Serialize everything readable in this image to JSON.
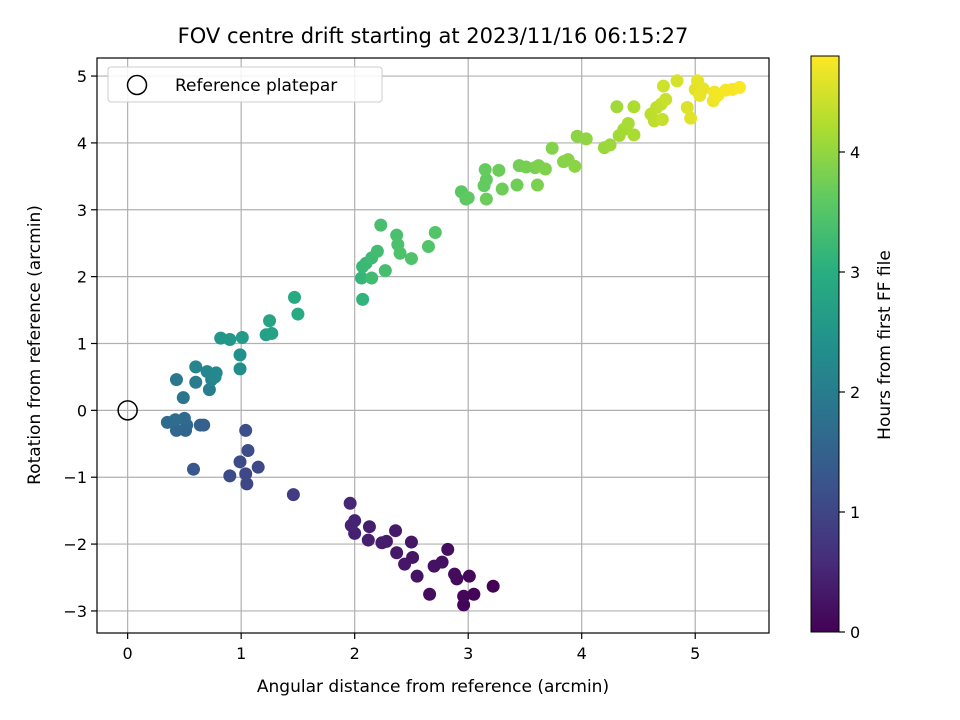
{
  "chart_data": {
    "type": "scatter",
    "title": "FOV centre drift starting at 2023/11/16 06:15:27",
    "xlabel": "Angular distance from reference (arcmin)",
    "ylabel": "Rotation from reference (arcmin)",
    "xlim": [
      -0.27,
      5.65
    ],
    "ylim": [
      -3.33,
      5.27
    ],
    "xticks": [
      0,
      1,
      2,
      3,
      4,
      5
    ],
    "yticks": [
      -3,
      -2,
      -1,
      0,
      1,
      2,
      3,
      4,
      5
    ],
    "xtick_labels": [
      "0",
      "1",
      "2",
      "3",
      "4",
      "5"
    ],
    "ytick_labels": [
      "−3",
      "−2",
      "−1",
      "0",
      "1",
      "2",
      "3",
      "4",
      "5"
    ],
    "grid": true,
    "legend": {
      "placement": "top-left",
      "entries": [
        "Reference platepar"
      ]
    },
    "reference_point": {
      "name": "Reference platepar",
      "x": 0,
      "y": 0,
      "marker": "open-circle"
    },
    "colorbar": {
      "label": "Hours from first FF file",
      "colormap": "viridis",
      "min": 0,
      "max": 4.8,
      "ticks": [
        0,
        1,
        2,
        3,
        4
      ],
      "tick_labels": [
        "0",
        "1",
        "2",
        "3",
        "4"
      ]
    },
    "color_value_label": "Hours from first FF file",
    "points": [
      {
        "x": 3.22,
        "y": -2.63,
        "h": 0.02
      },
      {
        "x": 3.05,
        "y": -2.75,
        "h": 0.04
      },
      {
        "x": 2.96,
        "y": -2.91,
        "h": 0.06
      },
      {
        "x": 2.96,
        "y": -2.78,
        "h": 0.08
      },
      {
        "x": 3.01,
        "y": -2.48,
        "h": 0.1
      },
      {
        "x": 2.9,
        "y": -2.52,
        "h": 0.12
      },
      {
        "x": 2.88,
        "y": -2.45,
        "h": 0.14
      },
      {
        "x": 2.66,
        "y": -2.75,
        "h": 0.16
      },
      {
        "x": 2.82,
        "y": -2.08,
        "h": 0.18
      },
      {
        "x": 2.77,
        "y": -2.27,
        "h": 0.2
      },
      {
        "x": 2.7,
        "y": -2.33,
        "h": 0.22
      },
      {
        "x": 2.55,
        "y": -2.48,
        "h": 0.24
      },
      {
        "x": 2.51,
        "y": -2.2,
        "h": 0.26
      },
      {
        "x": 2.5,
        "y": -1.97,
        "h": 0.28
      },
      {
        "x": 2.44,
        "y": -2.3,
        "h": 0.3
      },
      {
        "x": 2.37,
        "y": -2.13,
        "h": 0.32
      },
      {
        "x": 2.36,
        "y": -1.8,
        "h": 0.34
      },
      {
        "x": 2.28,
        "y": -1.96,
        "h": 0.36
      },
      {
        "x": 2.24,
        "y": -1.98,
        "h": 0.38
      },
      {
        "x": 2.13,
        "y": -1.74,
        "h": 0.4
      },
      {
        "x": 2.12,
        "y": -1.94,
        "h": 0.42
      },
      {
        "x": 2.0,
        "y": -1.84,
        "h": 0.44
      },
      {
        "x": 2.0,
        "y": -1.65,
        "h": 0.46
      },
      {
        "x": 1.97,
        "y": -1.72,
        "h": 0.48
      },
      {
        "x": 1.96,
        "y": -1.39,
        "h": 0.5
      },
      {
        "x": 1.46,
        "y": -1.26,
        "h": 0.85
      },
      {
        "x": 1.05,
        "y": -1.1,
        "h": 1.0
      },
      {
        "x": 1.04,
        "y": -0.95,
        "h": 1.02
      },
      {
        "x": 1.15,
        "y": -0.85,
        "h": 1.05
      },
      {
        "x": 0.99,
        "y": -0.77,
        "h": 1.08
      },
      {
        "x": 0.9,
        "y": -0.98,
        "h": 1.1
      },
      {
        "x": 1.06,
        "y": -0.6,
        "h": 1.12
      },
      {
        "x": 1.04,
        "y": -0.3,
        "h": 1.15
      },
      {
        "x": 0.58,
        "y": -0.88,
        "h": 1.3
      },
      {
        "x": 0.67,
        "y": -0.22,
        "h": 1.45
      },
      {
        "x": 0.64,
        "y": -0.22,
        "h": 1.5
      },
      {
        "x": 0.51,
        "y": -0.3,
        "h": 1.55
      },
      {
        "x": 0.43,
        "y": -0.3,
        "h": 1.58
      },
      {
        "x": 0.52,
        "y": -0.22,
        "h": 1.6
      },
      {
        "x": 0.5,
        "y": -0.12,
        "h": 1.65
      },
      {
        "x": 0.35,
        "y": -0.18,
        "h": 1.68
      },
      {
        "x": 0.42,
        "y": -0.14,
        "h": 1.7
      },
      {
        "x": 0.49,
        "y": 0.19,
        "h": 1.85
      },
      {
        "x": 0.43,
        "y": 0.46,
        "h": 1.9
      },
      {
        "x": 0.6,
        "y": 0.42,
        "h": 2.0
      },
      {
        "x": 0.72,
        "y": 0.31,
        "h": 2.05
      },
      {
        "x": 0.74,
        "y": 0.46,
        "h": 2.1
      },
      {
        "x": 0.6,
        "y": 0.65,
        "h": 2.15
      },
      {
        "x": 0.7,
        "y": 0.58,
        "h": 2.2
      },
      {
        "x": 0.77,
        "y": 0.5,
        "h": 2.22
      },
      {
        "x": 0.78,
        "y": 0.56,
        "h": 2.25
      },
      {
        "x": 0.99,
        "y": 0.62,
        "h": 2.35
      },
      {
        "x": 0.99,
        "y": 0.83,
        "h": 2.4
      },
      {
        "x": 0.82,
        "y": 1.08,
        "h": 2.5
      },
      {
        "x": 0.9,
        "y": 1.06,
        "h": 2.55
      },
      {
        "x": 1.01,
        "y": 1.09,
        "h": 2.6
      },
      {
        "x": 1.22,
        "y": 1.13,
        "h": 2.7
      },
      {
        "x": 1.27,
        "y": 1.15,
        "h": 2.75
      },
      {
        "x": 1.25,
        "y": 1.34,
        "h": 2.8
      },
      {
        "x": 1.47,
        "y": 1.69,
        "h": 2.9
      },
      {
        "x": 1.5,
        "y": 1.44,
        "h": 2.95
      },
      {
        "x": 2.07,
        "y": 1.66,
        "h": 3.1
      },
      {
        "x": 2.06,
        "y": 1.98,
        "h": 3.15
      },
      {
        "x": 2.07,
        "y": 2.15,
        "h": 3.2
      },
      {
        "x": 2.1,
        "y": 2.2,
        "h": 3.22
      },
      {
        "x": 2.15,
        "y": 2.28,
        "h": 3.25
      },
      {
        "x": 2.15,
        "y": 1.98,
        "h": 3.28
      },
      {
        "x": 2.2,
        "y": 2.38,
        "h": 3.3
      },
      {
        "x": 2.27,
        "y": 2.09,
        "h": 3.33
      },
      {
        "x": 2.23,
        "y": 2.77,
        "h": 3.35
      },
      {
        "x": 2.37,
        "y": 2.62,
        "h": 3.38
      },
      {
        "x": 2.38,
        "y": 2.48,
        "h": 3.4
      },
      {
        "x": 2.4,
        "y": 2.35,
        "h": 3.42
      },
      {
        "x": 2.5,
        "y": 2.27,
        "h": 3.44
      },
      {
        "x": 2.65,
        "y": 2.45,
        "h": 3.46
      },
      {
        "x": 2.71,
        "y": 2.66,
        "h": 3.48
      },
      {
        "x": 2.94,
        "y": 3.27,
        "h": 3.55
      },
      {
        "x": 2.98,
        "y": 3.16,
        "h": 3.58
      },
      {
        "x": 3.0,
        "y": 3.18,
        "h": 3.6
      },
      {
        "x": 3.14,
        "y": 3.36,
        "h": 3.62
      },
      {
        "x": 3.16,
        "y": 3.45,
        "h": 3.64
      },
      {
        "x": 3.15,
        "y": 3.6,
        "h": 3.66
      },
      {
        "x": 3.16,
        "y": 3.16,
        "h": 3.68
      },
      {
        "x": 3.27,
        "y": 3.59,
        "h": 3.7
      },
      {
        "x": 3.3,
        "y": 3.31,
        "h": 3.72
      },
      {
        "x": 3.43,
        "y": 3.37,
        "h": 3.74
      },
      {
        "x": 3.45,
        "y": 3.66,
        "h": 3.76
      },
      {
        "x": 3.51,
        "y": 3.64,
        "h": 3.78
      },
      {
        "x": 3.59,
        "y": 3.63,
        "h": 3.8
      },
      {
        "x": 3.61,
        "y": 3.37,
        "h": 3.82
      },
      {
        "x": 3.62,
        "y": 3.66,
        "h": 3.84
      },
      {
        "x": 3.68,
        "y": 3.61,
        "h": 3.86
      },
      {
        "x": 3.74,
        "y": 3.92,
        "h": 3.88
      },
      {
        "x": 3.84,
        "y": 3.72,
        "h": 3.9
      },
      {
        "x": 3.88,
        "y": 3.75,
        "h": 3.92
      },
      {
        "x": 3.94,
        "y": 3.65,
        "h": 3.94
      },
      {
        "x": 3.96,
        "y": 4.1,
        "h": 3.96
      },
      {
        "x": 4.04,
        "y": 4.06,
        "h": 3.98
      },
      {
        "x": 4.2,
        "y": 3.93,
        "h": 4.05
      },
      {
        "x": 4.25,
        "y": 3.97,
        "h": 4.08
      },
      {
        "x": 4.31,
        "y": 4.54,
        "h": 4.1
      },
      {
        "x": 4.33,
        "y": 4.11,
        "h": 4.12
      },
      {
        "x": 4.37,
        "y": 4.2,
        "h": 4.14
      },
      {
        "x": 4.41,
        "y": 4.29,
        "h": 4.16
      },
      {
        "x": 4.46,
        "y": 4.12,
        "h": 4.18
      },
      {
        "x": 4.46,
        "y": 4.54,
        "h": 4.2
      },
      {
        "x": 4.61,
        "y": 4.43,
        "h": 4.3
      },
      {
        "x": 4.64,
        "y": 4.33,
        "h": 4.32
      },
      {
        "x": 4.66,
        "y": 4.53,
        "h": 4.34
      },
      {
        "x": 4.7,
        "y": 4.58,
        "h": 4.36
      },
      {
        "x": 4.71,
        "y": 4.35,
        "h": 4.38
      },
      {
        "x": 4.74,
        "y": 4.65,
        "h": 4.4
      },
      {
        "x": 4.72,
        "y": 4.85,
        "h": 4.45
      },
      {
        "x": 4.84,
        "y": 4.93,
        "h": 4.5
      },
      {
        "x": 4.93,
        "y": 4.53,
        "h": 4.55
      },
      {
        "x": 4.96,
        "y": 4.37,
        "h": 4.58
      },
      {
        "x": 5.0,
        "y": 4.8,
        "h": 4.6
      },
      {
        "x": 5.02,
        "y": 4.93,
        "h": 4.62
      },
      {
        "x": 5.04,
        "y": 4.71,
        "h": 4.64
      },
      {
        "x": 5.07,
        "y": 4.81,
        "h": 4.66
      },
      {
        "x": 5.16,
        "y": 4.63,
        "h": 4.68
      },
      {
        "x": 5.17,
        "y": 4.76,
        "h": 4.7
      },
      {
        "x": 5.2,
        "y": 4.71,
        "h": 4.72
      },
      {
        "x": 5.27,
        "y": 4.79,
        "h": 4.74
      },
      {
        "x": 5.33,
        "y": 4.8,
        "h": 4.76
      },
      {
        "x": 5.39,
        "y": 4.83,
        "h": 4.78
      }
    ]
  }
}
